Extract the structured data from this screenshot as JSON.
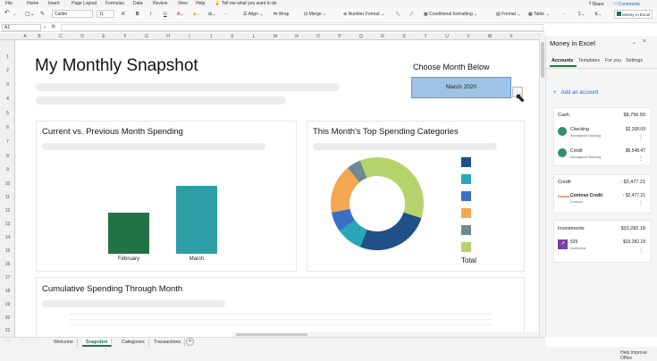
{
  "menu": [
    "File",
    "Home",
    "Insert",
    "Page Layout",
    "Formulas",
    "Data",
    "Review",
    "View",
    "Help"
  ],
  "tellme": "Tell me what you want to do",
  "share_label": "Share",
  "comments_label": "Comments",
  "ribbon": {
    "font_name": "Calibri",
    "font_size": "11",
    "align": "Align",
    "wrap": "Wrap",
    "merge": "Merge",
    "number_format": "Number Format",
    "cond_format": "Conditional formatting",
    "format": "Format",
    "table": "Table",
    "money_in_excel": "Money in Excel"
  },
  "name_box": "A1",
  "fx": "fx",
  "columns": [
    "A",
    "B",
    "C",
    "D",
    "E",
    "F",
    "G",
    "H",
    "I",
    "J",
    "K",
    "L",
    "M",
    "N",
    "O",
    "P",
    "Q",
    "R",
    "S",
    "T",
    "U",
    "V",
    "W",
    "X"
  ],
  "rows": [
    "1",
    "2",
    "3",
    "4",
    "5",
    "6",
    "7",
    "8",
    "9",
    "10",
    "11",
    "12",
    "13",
    "14",
    "15",
    "16",
    "17",
    "18",
    "19",
    "20",
    "21"
  ],
  "title": "My Monthly Snapshot",
  "choose_label": "Choose Month Below",
  "month_value": "March 2020",
  "chart1": {
    "title": "Current vs. Previous Month Spending"
  },
  "chart2": {
    "title": "This Month's Top Spending Categories",
    "total_label": "Total"
  },
  "chart3": {
    "title": "Cumulative Spending Through Month"
  },
  "chart_data": [
    {
      "type": "bar",
      "categories": [
        "February",
        "March"
      ],
      "values": [
        0.58,
        0.95
      ],
      "colors": [
        "#217346",
        "#2e9ea6"
      ]
    },
    {
      "type": "pie",
      "values": [
        30,
        26,
        9,
        7,
        17,
        5,
        6
      ],
      "colors": [
        "#b5d36b",
        "#1f5088",
        "#2aa7b6",
        "#3a6fc7",
        "#f3a750",
        "#6d8a92",
        "#b5d36b"
      ],
      "legend_colors": [
        "#1f5088",
        "#2aa7b6",
        "#3a6fc7",
        "#f3a750",
        "#6d8a92",
        "#b5d36b"
      ]
    }
  ],
  "tabs": [
    "Welcome",
    "Snapshot",
    "Categories",
    "Transactions"
  ],
  "status": "Help Improve Office",
  "pane": {
    "title": "Money in Excel",
    "tabs": [
      "Accounts",
      "Templates",
      "For you",
      "Settings"
    ],
    "add_account": "Add an account",
    "cash": {
      "label": "Cash",
      "total": "$8,756.56",
      "accounts": [
        {
          "name": "Checking",
          "bank": "Woodgrove Banking",
          "balance": "$2,208.09"
        },
        {
          "name": "Credit",
          "bank": "Woodgrove Banking",
          "balance": "$6,548.47"
        }
      ]
    },
    "credit": {
      "label": "Credit",
      "total": "- $2,477.21",
      "accounts": [
        {
          "name": "Contoso Credit",
          "bank": "Contoso",
          "balance": "- $2,477.21"
        }
      ]
    },
    "investments": {
      "label": "Investments",
      "total": "$33,282.18",
      "accounts": [
        {
          "name": "529",
          "bank": "Northwind",
          "balance": "$33,282.18"
        }
      ]
    }
  }
}
